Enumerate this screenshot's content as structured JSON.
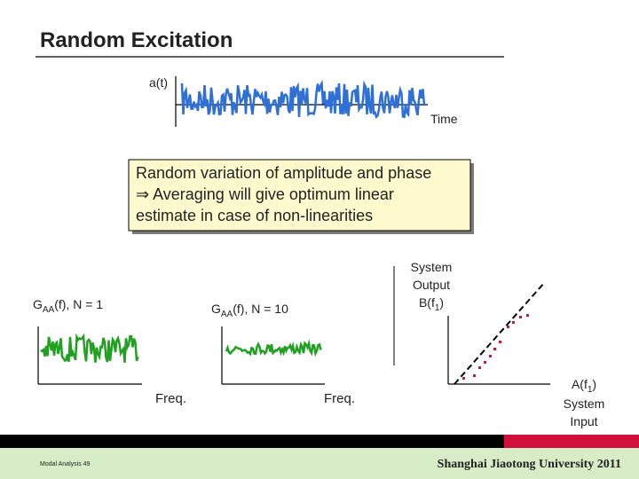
{
  "header": {
    "title": "Random Excitation"
  },
  "time_plot": {
    "y_label": "a(t)",
    "x_label": "Time"
  },
  "callout": {
    "lines": [
      "Random variation of amplitude and phase",
      "⇒ Averaging will give optimum linear",
      "estimate in case of non-linearities"
    ]
  },
  "spectrum_n1": {
    "label": {
      "main": "G",
      "sub": "AA",
      "rest": "(f), N = 1"
    },
    "x_label": "Freq."
  },
  "spectrum_n10": {
    "label": {
      "main": "G",
      "sub": "AA",
      "rest": "(f), N = 10"
    },
    "x_label": "Freq."
  },
  "linearity_plot": {
    "y_label": {
      "lines": [
        "System",
        "Output"
      ],
      "main": "B(f",
      "sub": "1",
      "rest": ")"
    },
    "x_label": {
      "main": "A(f",
      "sub": "1",
      "rest": ")",
      "lines": [
        "System",
        "Input"
      ]
    }
  },
  "footer": {
    "left": "Modal Analysis 49",
    "right": "Shanghai Jiaotong University 2011"
  }
}
